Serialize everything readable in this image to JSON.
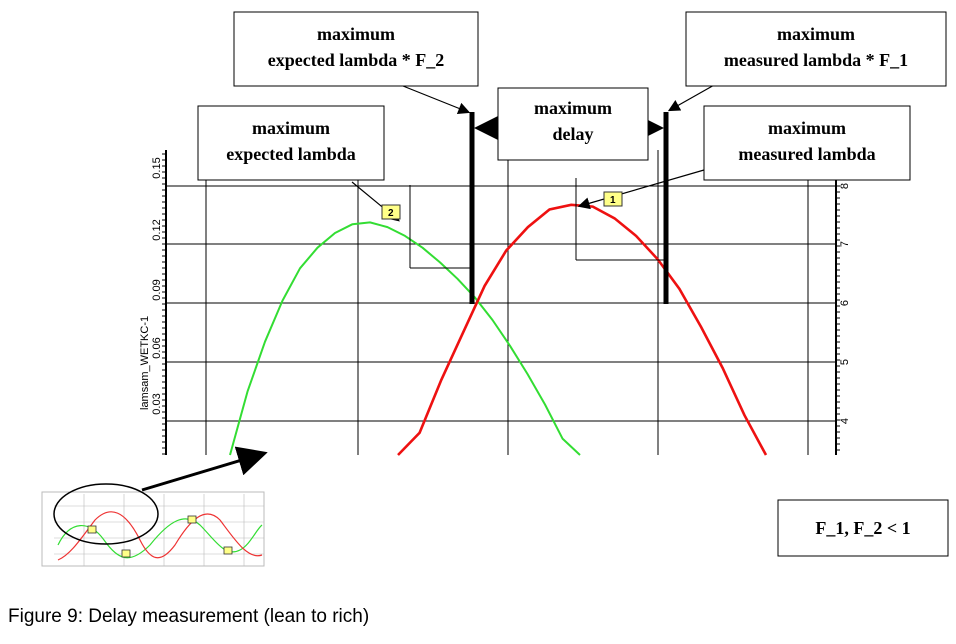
{
  "caption": "Figure 9: Delay measurement (lean to rich)",
  "annotations": {
    "expected_f2": [
      "maximum",
      "expected lambda * F_2"
    ],
    "measured_f1": [
      "maximum",
      "measured lambda * F_1"
    ],
    "delay": [
      "maximum",
      "delay"
    ],
    "expected": [
      "maximum",
      "expected lambda"
    ],
    "measured": [
      "maximum",
      "measured lambda"
    ],
    "condition": "F_1, F_2 < 1"
  },
  "colors": {
    "expected": "#33dd33",
    "measured": "#ee1111",
    "grid": "#000000",
    "marker_fill": "#ffff88"
  },
  "chart_data": {
    "type": "line",
    "ylabel": "lamsam_WETKC-1",
    "left_axis": {
      "ticks": [
        "0.15",
        "0.12",
        "0.09",
        "0.06",
        "0.03"
      ]
    },
    "right_axis": {
      "ticks": [
        "8",
        "7",
        "6",
        "5",
        "4"
      ]
    },
    "markers": [
      {
        "label": "1",
        "series": "measured"
      },
      {
        "label": "2",
        "series": "expected"
      }
    ],
    "series": [
      {
        "key": "expected",
        "x": [
          0,
          1,
          2,
          3,
          4,
          5,
          6,
          7,
          8,
          9,
          10,
          11,
          12,
          13,
          14,
          15,
          16,
          17,
          18,
          19,
          20,
          21,
          22,
          23,
          24
        ],
        "y": [
          3.4,
          4.5,
          5.35,
          6.05,
          6.6,
          6.95,
          7.2,
          7.35,
          7.38,
          7.3,
          7.15,
          6.95,
          6.7,
          6.42,
          6.1,
          5.72,
          5.28,
          4.8,
          4.28,
          3.7,
          3.4,
          3.4,
          3.4,
          3.4,
          3.4
        ]
      },
      {
        "key": "measured",
        "x": [
          0,
          1,
          2,
          3,
          4,
          5,
          6,
          7,
          8,
          9,
          10,
          11,
          12,
          13,
          14,
          15,
          16,
          17,
          18,
          19,
          20,
          21,
          22,
          23,
          24
        ],
        "y": [
          3.4,
          3.4,
          3.4,
          3.4,
          3.4,
          3.4,
          3.4,
          3.8,
          4.7,
          5.5,
          6.3,
          6.9,
          7.3,
          7.6,
          7.68,
          7.65,
          7.45,
          7.15,
          6.75,
          6.25,
          5.6,
          4.9,
          4.1,
          3.4,
          3.4
        ]
      }
    ]
  }
}
